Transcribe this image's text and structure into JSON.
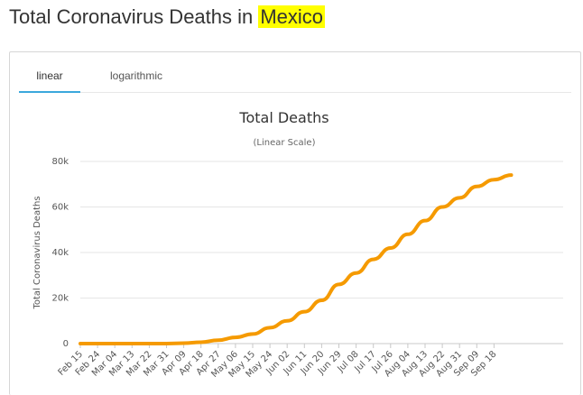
{
  "page": {
    "title_prefix": "Total Coronavirus Deaths in ",
    "title_highlight": "Mexico",
    "highlight_color": "#ffff00"
  },
  "tabs": [
    {
      "label": "linear",
      "active": true
    },
    {
      "label": "logarithmic",
      "active": false
    }
  ],
  "colors": {
    "line": "#f59a00",
    "grid": "#e6e6e6",
    "tab_underline": "#3ba8dc"
  },
  "chart_data": {
    "type": "line",
    "title": "Total Deaths",
    "subtitle": "(Linear Scale)",
    "xlabel": "",
    "ylabel": "Total Coronavirus Deaths",
    "ylim": [
      0,
      80000
    ],
    "y_ticks": [
      0,
      20000,
      40000,
      60000,
      80000
    ],
    "y_tick_labels": [
      "0",
      "20k",
      "40k",
      "60k",
      "80k"
    ],
    "x_tick_labels": [
      "Feb 15",
      "Feb 24",
      "Mar 04",
      "Mar 13",
      "Mar 22",
      "Mar 31",
      "Apr 09",
      "Apr 18",
      "Apr 27",
      "May 06",
      "May 15",
      "May 24",
      "Jun 02",
      "Jun 11",
      "Jun 20",
      "Jun 29",
      "Jul 08",
      "Jul 17",
      "Jul 26",
      "Aug 04",
      "Aug 13",
      "Aug 22",
      "Aug 31",
      "Sep 09",
      "Sep 18"
    ],
    "grid": true,
    "legend": "none",
    "series": [
      {
        "x": [
          "Feb 15",
          "Feb 24",
          "Mar 04",
          "Mar 13",
          "Mar 22",
          "Mar 31",
          "Apr 09",
          "Apr 18",
          "Apr 27",
          "May 06",
          "May 15",
          "May 24",
          "Jun 02",
          "Jun 11",
          "Jun 20",
          "Jun 29",
          "Jul 08",
          "Jul 17",
          "Jul 26",
          "Aug 04",
          "Aug 13",
          "Aug 22",
          "Aug 31",
          "Sep 09",
          "Sep 18",
          "Sep 24"
        ],
        "values": [
          0,
          0,
          0,
          0,
          0,
          20,
          200,
          600,
          1500,
          2700,
          4200,
          7000,
          10000,
          14000,
          19000,
          26000,
          31000,
          37000,
          42000,
          48000,
          54000,
          60000,
          64000,
          69000,
          72000,
          74000
        ]
      }
    ]
  }
}
